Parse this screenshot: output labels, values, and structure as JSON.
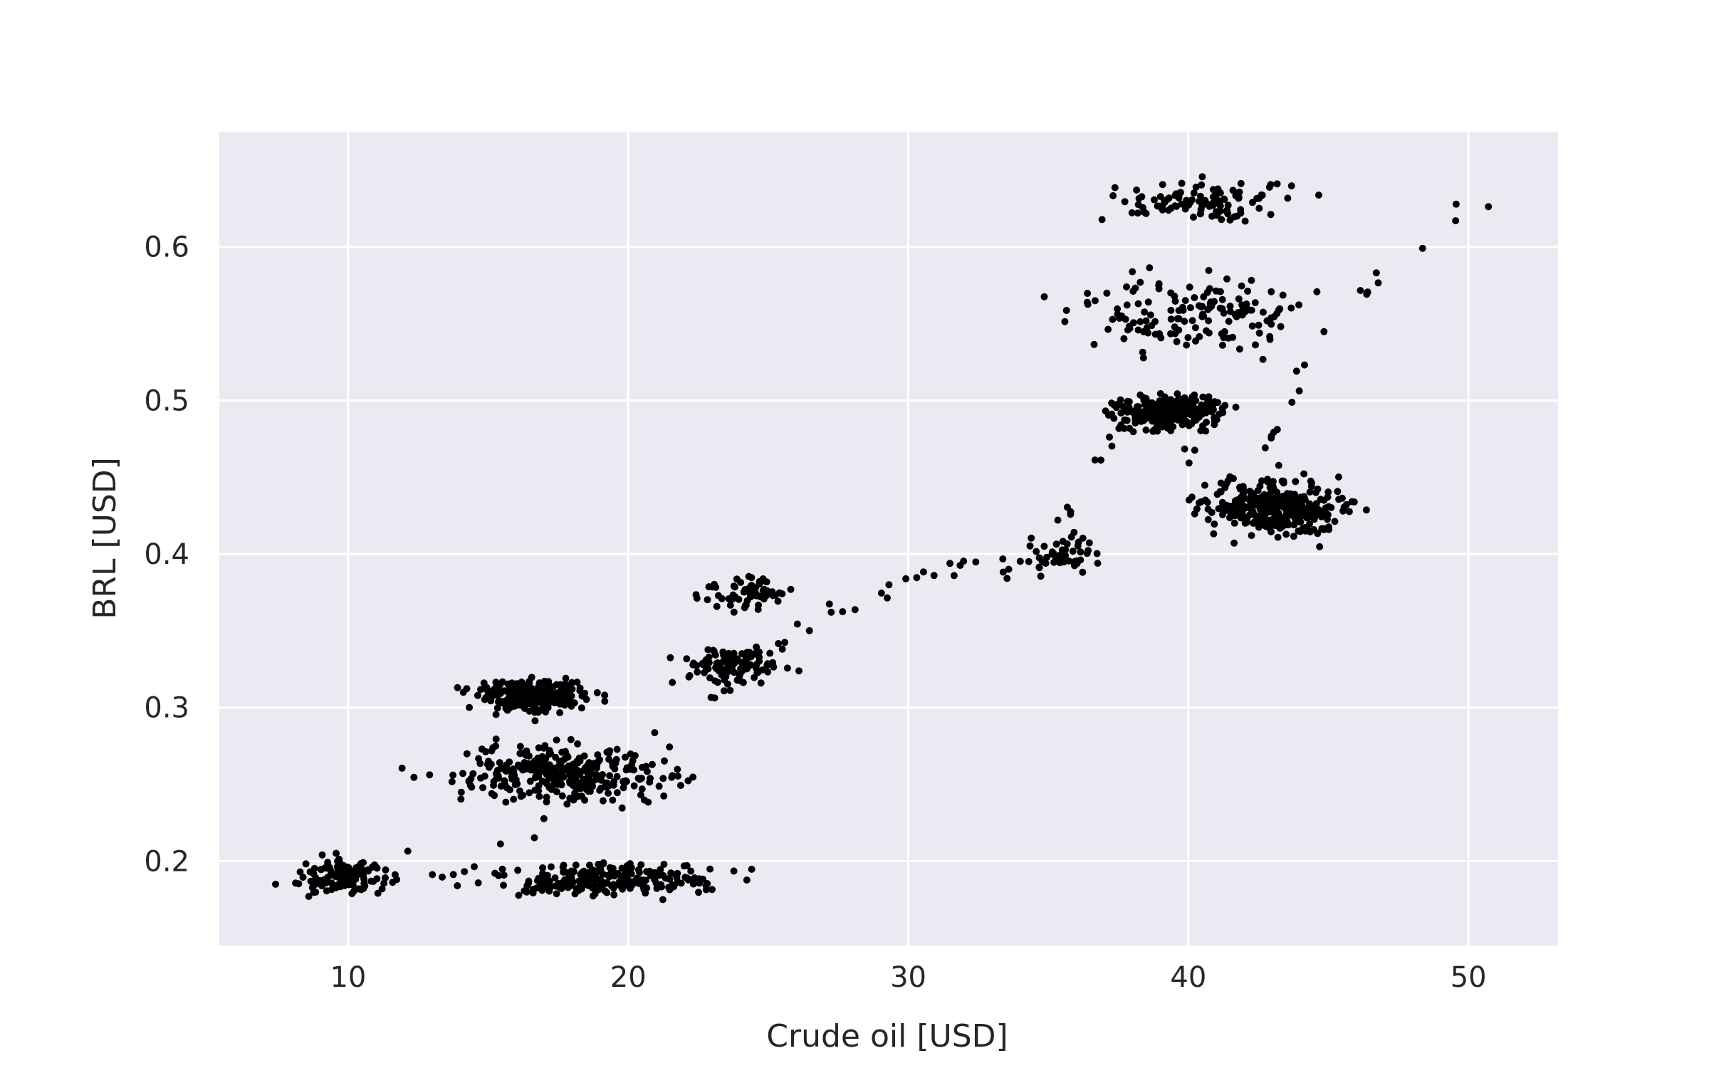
{
  "chart_data": {
    "type": "scatter",
    "title": "",
    "xlabel": "Crude oil [USD]",
    "ylabel": "BRL [USD]",
    "xlim": [
      5.4,
      53.2
    ],
    "ylim": [
      0.145,
      0.675
    ],
    "xticks": [
      10,
      20,
      30,
      40,
      50
    ],
    "yticks": [
      0.2,
      0.3,
      0.4,
      0.5,
      0.6
    ],
    "xtick_labels": [
      "10",
      "20",
      "30",
      "40",
      "50"
    ],
    "ytick_labels": [
      "0.2",
      "0.3",
      "0.4",
      "0.5",
      "0.6"
    ],
    "grid": true,
    "background_color": "#eaeaf2",
    "grid_color": "#ffffff",
    "marker_color": "#000000",
    "series": [
      {
        "clusters": [
          {
            "x": [
              7.5,
              12.5
            ],
            "y": [
              0.17,
              0.21
            ],
            "n": 110
          },
          {
            "x": [
              13.5,
              25.2
            ],
            "y": [
              0.172,
              0.203
            ],
            "n": 230
          },
          {
            "x": [
              11.5,
              23.5
            ],
            "y": [
              0.23,
              0.285
            ],
            "n": 330
          },
          {
            "x": [
              13.5,
              19.5
            ],
            "y": [
              0.29,
              0.325
            ],
            "n": 230
          },
          {
            "x": [
              21.0,
              26.5
            ],
            "y": [
              0.31,
              0.345
            ],
            "n": 110
          },
          {
            "x": [
              21.5,
              26.5
            ],
            "y": [
              0.36,
              0.39
            ],
            "n": 70
          },
          {
            "x": [
              33.5,
              37.5
            ],
            "y": [
              0.38,
              0.42
            ],
            "n": 50
          },
          {
            "x": [
              39.5,
              46.8
            ],
            "y": [
              0.4,
              0.46
            ],
            "n": 330
          },
          {
            "x": [
              36.0,
              42.5
            ],
            "y": [
              0.475,
              0.51
            ],
            "n": 240
          },
          {
            "x": [
              33.5,
              46.5
            ],
            "y": [
              0.52,
              0.59
            ],
            "n": 150
          },
          {
            "x": [
              35.5,
              45.5
            ],
            "y": [
              0.61,
              0.65
            ],
            "n": 110
          }
        ],
        "trend": [
          [
            7.5,
            0.18
          ],
          [
            14,
            0.19
          ],
          [
            21,
            0.28
          ],
          [
            27,
            0.36
          ],
          [
            31,
            0.39
          ],
          [
            34,
            0.39
          ],
          [
            38,
            0.49
          ],
          [
            42,
            0.44
          ],
          [
            45,
            0.55
          ],
          [
            51,
            0.64
          ]
        ]
      }
    ]
  }
}
